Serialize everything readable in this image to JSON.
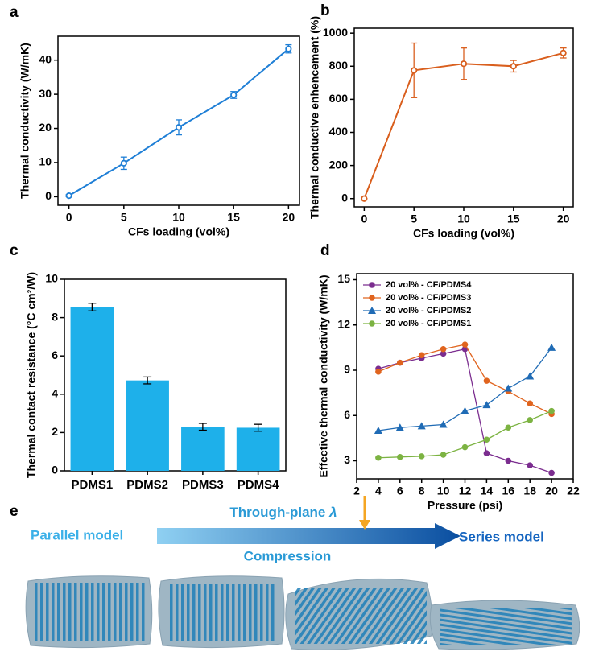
{
  "chart_data": [
    {
      "type": "line",
      "panel": "a",
      "xlabel": "CFs loading (vol%)",
      "ylabel": "Thermal conductivity (W/mK)",
      "x": [
        0,
        5,
        10,
        15,
        20
      ],
      "values": [
        0.3,
        9.8,
        20.3,
        29.8,
        43.3
      ],
      "errors": [
        0.3,
        1.8,
        2.2,
        1.0,
        1.2
      ],
      "color": "#1f7fd6",
      "xlim": [
        -1,
        21
      ],
      "ylim": [
        -2.5,
        47
      ],
      "xticks": [
        0,
        5,
        10,
        15,
        20
      ],
      "yticks": [
        0,
        10,
        20,
        30,
        40
      ]
    },
    {
      "type": "line",
      "panel": "b",
      "xlabel": "CFs loading (vol%)",
      "ylabel": "Thermal conductive enhencement (%)",
      "x": [
        0,
        5,
        10,
        15,
        20
      ],
      "values": [
        0,
        775,
        815,
        800,
        880
      ],
      "errors": [
        0,
        165,
        95,
        35,
        30
      ],
      "color": "#d95f1e",
      "xlim": [
        -1,
        21
      ],
      "ylim": [
        -50,
        1030
      ],
      "xticks": [
        0,
        5,
        10,
        15,
        20
      ],
      "yticks": [
        0,
        200,
        400,
        600,
        800,
        1000
      ]
    },
    {
      "type": "bar",
      "panel": "c",
      "ylabel": "Thermal contact resistance (°C cm²/W)",
      "categories": [
        "PDMS1",
        "PDMS2",
        "PDMS3",
        "PDMS4"
      ],
      "values": [
        8.55,
        4.72,
        2.3,
        2.25
      ],
      "errors": [
        0.2,
        0.18,
        0.18,
        0.18
      ],
      "color": "#1eb0ea",
      "ylim": [
        0,
        10
      ],
      "yticks": [
        0,
        2,
        4,
        6,
        8,
        10
      ]
    },
    {
      "type": "multiline",
      "panel": "d",
      "xlabel": "Pressure (psi)",
      "ylabel": "Effective thermal conductivity (W/mK)",
      "x": [
        4,
        6,
        8,
        10,
        12,
        14,
        16,
        18,
        20
      ],
      "series": [
        {
          "name": "20 vol% - CF/PDMS4",
          "color": "#7b2d8f",
          "marker": "circle",
          "values": [
            9.1,
            9.5,
            9.8,
            10.1,
            10.4,
            3.5,
            3.0,
            2.7,
            2.2
          ]
        },
        {
          "name": "20 vol% - CF/PDMS3",
          "color": "#e0641e",
          "marker": "circle",
          "values": [
            8.9,
            9.5,
            10.0,
            10.4,
            10.7,
            8.3,
            7.6,
            6.8,
            6.1
          ]
        },
        {
          "name": "20 vol% - CF/PDMS2",
          "color": "#1f6bb5",
          "marker": "triangle",
          "values": [
            5.0,
            5.2,
            5.3,
            5.4,
            6.3,
            6.7,
            7.8,
            8.6,
            10.5
          ]
        },
        {
          "name": "20 vol% - CF/PDMS1",
          "color": "#7cb342",
          "marker": "circle",
          "values": [
            3.2,
            3.25,
            3.3,
            3.4,
            3.9,
            4.4,
            5.2,
            5.7,
            6.3
          ]
        }
      ],
      "xlim": [
        2,
        22
      ],
      "ylim": [
        1.8,
        15.4
      ],
      "xticks": [
        2,
        4,
        6,
        8,
        10,
        12,
        14,
        16,
        18,
        20,
        22
      ],
      "yticks": [
        3,
        6,
        9,
        12,
        15
      ]
    }
  ],
  "panel_e": {
    "panel": "e",
    "left": "Parallel model",
    "arrow_top": "Through-plane",
    "symbol": "λ",
    "arrow_bottom": "Compression",
    "right": "Series model"
  }
}
